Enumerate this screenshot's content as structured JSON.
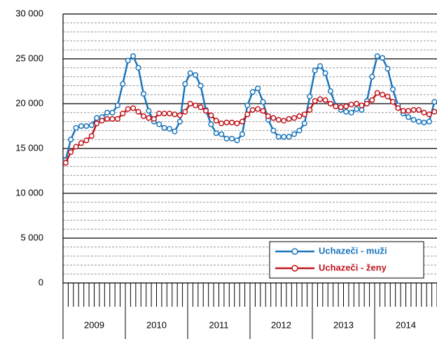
{
  "chart_data": {
    "type": "line",
    "categories": [
      null,
      null,
      null,
      null,
      null,
      null,
      null,
      null,
      null,
      null,
      null,
      null,
      null,
      null,
      null,
      null,
      null,
      null,
      null,
      null,
      null,
      null,
      null,
      null,
      null,
      null,
      null,
      null,
      null,
      null,
      null,
      null,
      null,
      null,
      null,
      null,
      null,
      null,
      null,
      null,
      null,
      null,
      null,
      null,
      null,
      null,
      null,
      null,
      null,
      null,
      null,
      null,
      null,
      null,
      null,
      null,
      null,
      null,
      null,
      null,
      null,
      null,
      null,
      null,
      null,
      null,
      null,
      null,
      null,
      null,
      null,
      null
    ],
    "x_groups": [
      "2009",
      "2010",
      "2011",
      "2012",
      "2013",
      "2014"
    ],
    "series": [
      {
        "name": "Uchazeči - muži",
        "color": "#1a75bc",
        "values": [
          13700,
          16000,
          17300,
          17500,
          17500,
          17600,
          18400,
          18500,
          19000,
          19000,
          19800,
          22200,
          24800,
          25300,
          24000,
          21100,
          19200,
          18000,
          17700,
          17300,
          17200,
          16900,
          18000,
          22200,
          23400,
          23200,
          22000,
          19300,
          17700,
          16700,
          16600,
          16100,
          16100,
          15900,
          16600,
          19800,
          21300,
          21700,
          20200,
          18200,
          17000,
          16300,
          16300,
          16300,
          16600,
          17000,
          17800,
          20800,
          23700,
          24200,
          23400,
          21400,
          19800,
          19300,
          19100,
          19000,
          19400,
          19300,
          20300,
          23000,
          25300,
          25100,
          23900,
          21600,
          19800,
          18900,
          18500,
          18200,
          18000,
          17900,
          18000,
          20200
        ]
      },
      {
        "name": "Uchazeči - ženy",
        "color": "#c0141c",
        "values": [
          13400,
          14600,
          15200,
          15600,
          15900,
          16400,
          17800,
          18100,
          18300,
          18300,
          18300,
          18900,
          19400,
          19500,
          19100,
          18600,
          18400,
          18300,
          18900,
          18900,
          18900,
          18800,
          18700,
          19100,
          20000,
          19800,
          19600,
          19200,
          18700,
          18100,
          17800,
          17900,
          17900,
          17800,
          18000,
          18800,
          19300,
          19400,
          19200,
          18600,
          18400,
          18200,
          18100,
          18300,
          18400,
          18600,
          18800,
          19300,
          20300,
          20500,
          20400,
          20000,
          19700,
          19600,
          19700,
          19900,
          20000,
          19800,
          20000,
          20400,
          21200,
          21000,
          20800,
          20200,
          19500,
          19200,
          19200,
          19300,
          19300,
          19000,
          18800,
          19100
        ]
      }
    ],
    "ylim": [
      0,
      30000
    ],
    "yticks": [
      0,
      {
        "value": 5000,
        "label": "5 000"
      },
      {
        "value": 10000,
        "label": "10 000"
      },
      {
        "value": 15000,
        "label": "15 000"
      },
      {
        "value": 20000,
        "label": "20 000"
      },
      {
        "value": 25000,
        "label": "25 000"
      },
      {
        "value": 30000,
        "label": "30 000"
      }
    ],
    "minor_grid_step": 1000,
    "grid": true,
    "legend": "bottom-right"
  }
}
